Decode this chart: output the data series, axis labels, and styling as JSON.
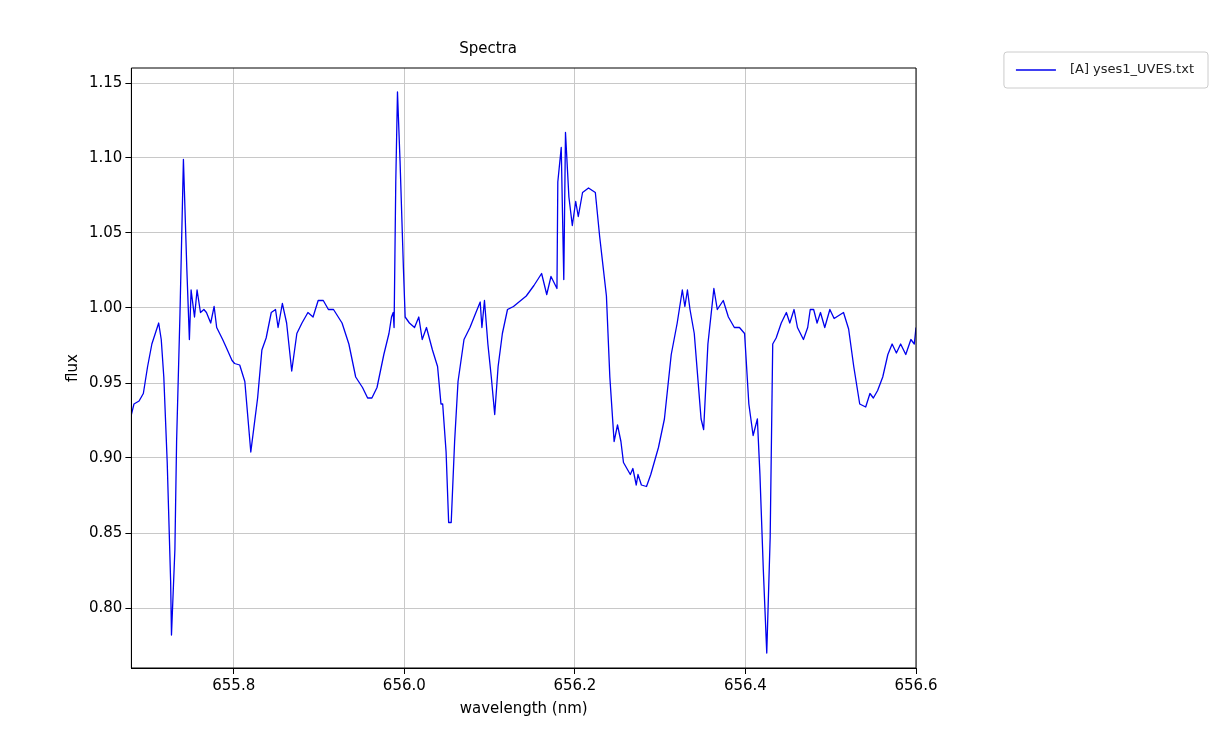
{
  "chart_data": {
    "type": "line",
    "title": "Spectra",
    "xlabel": "wavelength (nm)",
    "ylabel": "flux",
    "legend": "top right",
    "grid": true,
    "marker": "none",
    "line_style": "solid",
    "xlim": [
      655.68,
      656.6
    ],
    "ylim": [
      0.76,
      1.16
    ],
    "xticks": [
      655.8,
      {
        "value": 656,
        "label": "656.0"
      },
      656.2,
      656.4,
      656.6
    ],
    "yticks": [
      {
        "value": 0.8,
        "label": "0.80"
      },
      0.85,
      {
        "value": 0.9,
        "label": "0.90"
      },
      0.95,
      {
        "value": 1,
        "label": "1.00"
      },
      1.05,
      {
        "value": 1.1,
        "label": "1.10"
      },
      1.15
    ],
    "series": [
      {
        "name": "[A] yses1_UVES.txt",
        "color": "#0000ee",
        "x": [
          655.68,
          655.683,
          655.689,
          655.694,
          655.699,
          655.704,
          655.708,
          655.712,
          655.715,
          655.718,
          655.722,
          655.726,
          655.727,
          655.731,
          655.733,
          655.737,
          655.741,
          655.745,
          655.748,
          655.75,
          655.754,
          655.757,
          655.761,
          655.765,
          655.768,
          655.773,
          655.777,
          655.78,
          655.787,
          655.791,
          655.798,
          655.801,
          655.807,
          655.813,
          655.82,
          655.828,
          655.833,
          655.838,
          655.844,
          655.849,
          655.852,
          655.857,
          655.862,
          655.868,
          655.874,
          655.88,
          655.887,
          655.893,
          655.899,
          655.905,
          655.911,
          655.917,
          655.927,
          655.935,
          655.943,
          655.951,
          655.957,
          655.962,
          655.968,
          655.976,
          655.982,
          655.985,
          655.987,
          655.988,
          655.99,
          655.992,
          655.995,
          655.999,
          656.001,
          656.006,
          656.012,
          656.017,
          656.021,
          656.026,
          656.033,
          656.039,
          656.043,
          656.045,
          656.049,
          656.052,
          656.055,
          656.059,
          656.063,
          656.07,
          656.077,
          656.084,
          656.089,
          656.091,
          656.094,
          656.098,
          656.102,
          656.106,
          656.11,
          656.115,
          656.121,
          656.128,
          656.143,
          656.152,
          656.161,
          656.167,
          656.172,
          656.179,
          656.18,
          656.184,
          656.187,
          656.189,
          656.193,
          656.197,
          656.201,
          656.204,
          656.209,
          656.216,
          656.224,
          656.229,
          656.237,
          656.241,
          656.246,
          656.25,
          656.254,
          656.257,
          656.261,
          656.265,
          656.268,
          656.272,
          656.274,
          656.278,
          656.284,
          656.289,
          656.298,
          656.305,
          656.313,
          656.32,
          656.326,
          656.329,
          656.332,
          656.335,
          656.34,
          656.348,
          656.351,
          656.356,
          656.363,
          656.367,
          656.374,
          656.38,
          656.387,
          656.393,
          656.399,
          656.404,
          656.409,
          656.414,
          656.417,
          656.421,
          656.425,
          656.429,
          656.432,
          656.436,
          656.442,
          656.448,
          656.452,
          656.457,
          656.461,
          656.468,
          656.473,
          656.476,
          656.48,
          656.484,
          656.488,
          656.493,
          656.499,
          656.504,
          656.515,
          656.521,
          656.527,
          656.534,
          656.541,
          656.546,
          656.55,
          656.555,
          656.561,
          656.567,
          656.572,
          656.577,
          656.582,
          656.588,
          656.594,
          656.598,
          656.6
        ],
        "values": [
          0.929,
          0.936,
          0.938,
          0.943,
          0.961,
          0.976,
          0.983,
          0.99,
          0.979,
          0.954,
          0.897,
          0.818,
          0.782,
          0.839,
          0.911,
          0.997,
          1.099,
          1.026,
          0.979,
          1.012,
          0.994,
          1.012,
          0.997,
          0.999,
          0.997,
          0.99,
          1.001,
          0.987,
          0.979,
          0.974,
          0.965,
          0.963,
          0.962,
          0.951,
          0.904,
          0.94,
          0.972,
          0.98,
          0.997,
          0.999,
          0.987,
          1.003,
          0.99,
          0.958,
          0.983,
          0.99,
          0.997,
          0.994,
          1.005,
          1.005,
          0.999,
          0.999,
          0.99,
          0.976,
          0.954,
          0.947,
          0.94,
          0.94,
          0.947,
          0.969,
          0.983,
          0.994,
          0.997,
          0.987,
          1.084,
          1.144,
          1.098,
          1.026,
          0.994,
          0.99,
          0.987,
          0.994,
          0.979,
          0.987,
          0.972,
          0.961,
          0.936,
          0.936,
          0.904,
          0.857,
          0.857,
          0.911,
          0.951,
          0.979,
          0.987,
          0.997,
          1.004,
          0.987,
          1.005,
          0.976,
          0.954,
          0.929,
          0.961,
          0.983,
          0.999,
          1.001,
          1.008,
          1.015,
          1.023,
          1.009,
          1.021,
          1.013,
          1.084,
          1.107,
          1.019,
          1.117,
          1.074,
          1.055,
          1.071,
          1.061,
          1.077,
          1.08,
          1.077,
          1.048,
          1.008,
          0.954,
          0.911,
          0.922,
          0.911,
          0.897,
          0.893,
          0.889,
          0.893,
          0.882,
          0.889,
          0.882,
          0.881,
          0.889,
          0.907,
          0.926,
          0.969,
          0.99,
          1.012,
          1.001,
          1.012,
          0.999,
          0.983,
          0.926,
          0.919,
          0.976,
          1.013,
          0.999,
          1.005,
          0.994,
          0.987,
          0.987,
          0.983,
          0.936,
          0.915,
          0.926,
          0.889,
          0.825,
          0.77,
          0.847,
          0.976,
          0.98,
          0.99,
          0.997,
          0.99,
          0.999,
          0.987,
          0.979,
          0.987,
          0.999,
          0.999,
          0.99,
          0.997,
          0.987,
          0.999,
          0.993,
          0.997,
          0.986,
          0.961,
          0.936,
          0.934,
          0.943,
          0.94,
          0.945,
          0.954,
          0.969,
          0.976,
          0.97,
          0.976,
          0.969,
          0.979,
          0.976,
          0.987
        ]
      }
    ]
  }
}
